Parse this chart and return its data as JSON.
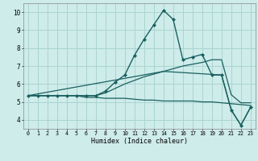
{
  "xlabel": "Humidex (Indice chaleur)",
  "bg_color": "#ceecea",
  "grid_color": "#aad4d0",
  "line_color": "#1a6060",
  "xlim": [
    -0.5,
    23.5
  ],
  "ylim": [
    3.5,
    10.5
  ],
  "xticks": [
    0,
    1,
    2,
    3,
    4,
    5,
    6,
    7,
    8,
    9,
    10,
    11,
    12,
    13,
    14,
    15,
    16,
    17,
    18,
    19,
    20,
    21,
    22,
    23
  ],
  "yticks": [
    4,
    5,
    6,
    7,
    8,
    9,
    10
  ],
  "series": [
    {
      "x": [
        0,
        1,
        2,
        3,
        4,
        5,
        6,
        7,
        8,
        9,
        10,
        11,
        12,
        13,
        14,
        15,
        16,
        17,
        18,
        19,
        20,
        21,
        22,
        23
      ],
      "y": [
        5.35,
        5.35,
        5.35,
        5.35,
        5.35,
        5.35,
        5.35,
        5.35,
        5.6,
        6.1,
        6.5,
        7.6,
        8.5,
        9.3,
        10.1,
        9.6,
        7.35,
        7.5,
        7.65,
        6.5,
        6.5,
        4.55,
        3.7,
        4.7
      ],
      "marker": "D",
      "markersize": 2.0,
      "lw": 1.0
    },
    {
      "x": [
        0,
        1,
        2,
        3,
        4,
        5,
        6,
        7,
        8,
        9,
        10,
        11,
        12,
        13,
        14,
        15,
        16,
        17,
        18,
        19,
        20,
        21,
        22,
        23
      ],
      "y": [
        5.35,
        5.35,
        5.35,
        5.35,
        5.35,
        5.35,
        5.35,
        5.35,
        5.5,
        5.75,
        6.0,
        6.2,
        6.4,
        6.55,
        6.7,
        6.85,
        7.0,
        7.1,
        7.2,
        7.35,
        7.35,
        5.4,
        4.95,
        4.95
      ],
      "marker": null,
      "lw": 0.9
    },
    {
      "x": [
        0,
        1,
        2,
        3,
        4,
        5,
        6,
        7,
        8,
        9,
        10,
        11,
        12,
        13,
        14,
        15,
        16,
        17,
        18,
        19,
        20,
        21,
        22,
        23
      ],
      "y": [
        5.35,
        5.35,
        5.35,
        5.35,
        5.35,
        5.35,
        5.25,
        5.25,
        5.2,
        5.2,
        5.2,
        5.15,
        5.1,
        5.1,
        5.05,
        5.05,
        5.05,
        5.05,
        5.0,
        5.0,
        4.95,
        4.9,
        4.85,
        4.8
      ],
      "marker": null,
      "lw": 0.9
    },
    {
      "x": [
        0,
        14,
        20,
        21,
        22,
        23
      ],
      "y": [
        5.35,
        6.7,
        6.5,
        4.55,
        3.7,
        4.7
      ],
      "marker": null,
      "lw": 0.9
    }
  ]
}
